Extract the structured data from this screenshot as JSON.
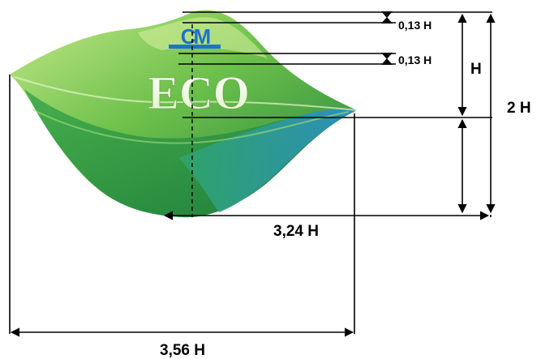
{
  "logo": {
    "brand": "CM",
    "word": "ECO",
    "colors": {
      "leaf_light": "#b9e27a",
      "leaf_mid": "#6cc04a",
      "leaf_dark": "#2f9a4a",
      "leaf_deep": "#1f7f3f",
      "leaf_blue": "#2b8fc9",
      "brand_blue": "#1f73c6",
      "eco_fill": "#ffffff"
    }
  },
  "dimensions": {
    "stripe_height_top": "0,13 H",
    "stripe_height_mid": "0,13 H",
    "height_h": "H",
    "height_total": "2 H",
    "width_inner": "3,24 H",
    "width_outer": "3,56 H"
  },
  "colors": {
    "line": "#000000",
    "background": "#ffffff"
  }
}
